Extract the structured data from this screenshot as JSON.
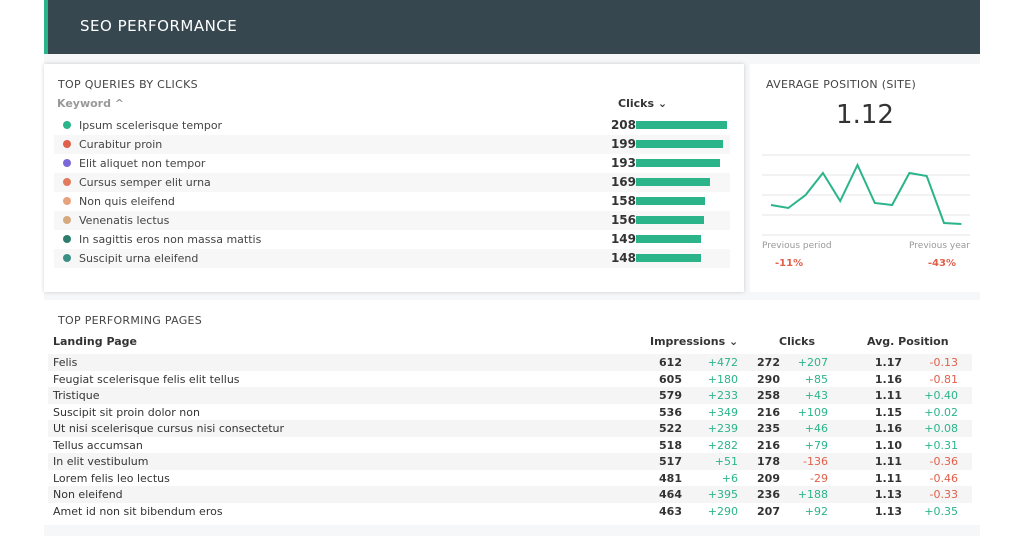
{
  "header": {
    "title": "SEO PERFORMANCE"
  },
  "queries": {
    "title": "TOP QUERIES BY CLICKS",
    "col_keyword": "Keyword ^",
    "col_clicks": "Clicks ⌄",
    "max": 208,
    "rows": [
      {
        "keyword": "Ipsum scelerisque tempor",
        "clicks": 208,
        "color": "#2bb48a"
      },
      {
        "keyword": "Curabitur proin",
        "clicks": 199,
        "color": "#e0604a"
      },
      {
        "keyword": "Elit aliquet non tempor",
        "clicks": 193,
        "color": "#7b68d8"
      },
      {
        "keyword": "Cursus semper elit urna",
        "clicks": 169,
        "color": "#e27b5e"
      },
      {
        "keyword": "Non quis eleifend",
        "clicks": 158,
        "color": "#e6a47e"
      },
      {
        "keyword": "Venenatis lectus",
        "clicks": 156,
        "color": "#d5aa7e"
      },
      {
        "keyword": "In sagittis eros non massa mattis",
        "clicks": 149,
        "color": "#2e7d6e"
      },
      {
        "keyword": "Suscipit urna eleifend",
        "clicks": 148,
        "color": "#3a9084"
      }
    ]
  },
  "avg_position": {
    "title": "AVERAGE POSITION (SITE)",
    "value": "1.12",
    "sparkline": [
      1.5,
      1.35,
      2.0,
      3.1,
      1.7,
      3.5,
      1.6,
      1.5,
      3.1,
      2.95,
      0.6,
      0.55
    ],
    "prev_period_label": "Previous period",
    "prev_period": "-11%",
    "prev_year_label": "Previous year",
    "prev_year": "-43%"
  },
  "pages": {
    "title": "TOP PERFORMING PAGES",
    "headers": [
      "Landing Page",
      "Impressions ⌄",
      "Clicks",
      "Avg. Position"
    ],
    "rows": [
      [
        "Felis",
        "612",
        "+472",
        "272",
        "+207",
        "1.17",
        "-0.13"
      ],
      [
        "Feugiat scelerisque felis elit tellus",
        "605",
        "+180",
        "290",
        "+85",
        "1.16",
        "-0.81"
      ],
      [
        "Tristique",
        "579",
        "+233",
        "258",
        "+43",
        "1.11",
        "+0.40"
      ],
      [
        "Suscipit sit proin dolor non",
        "536",
        "+349",
        "216",
        "+109",
        "1.15",
        "+0.02"
      ],
      [
        "Ut nisi scelerisque cursus nisi consectetur",
        "522",
        "+239",
        "235",
        "+46",
        "1.16",
        "+0.08"
      ],
      [
        "Tellus accumsan",
        "518",
        "+282",
        "216",
        "+79",
        "1.10",
        "+0.31"
      ],
      [
        "In elit vestibulum",
        "517",
        "+51",
        "178",
        "-136",
        "1.11",
        "-0.36"
      ],
      [
        "Lorem felis leo lectus",
        "481",
        "+6",
        "209",
        "-29",
        "1.11",
        "-0.46"
      ],
      [
        "Non eleifend",
        "464",
        "+395",
        "236",
        "+188",
        "1.13",
        "-0.33"
      ],
      [
        "Amet id non sit bibendum eros",
        "463",
        "+290",
        "207",
        "+92",
        "1.13",
        "+0.35"
      ]
    ]
  }
}
